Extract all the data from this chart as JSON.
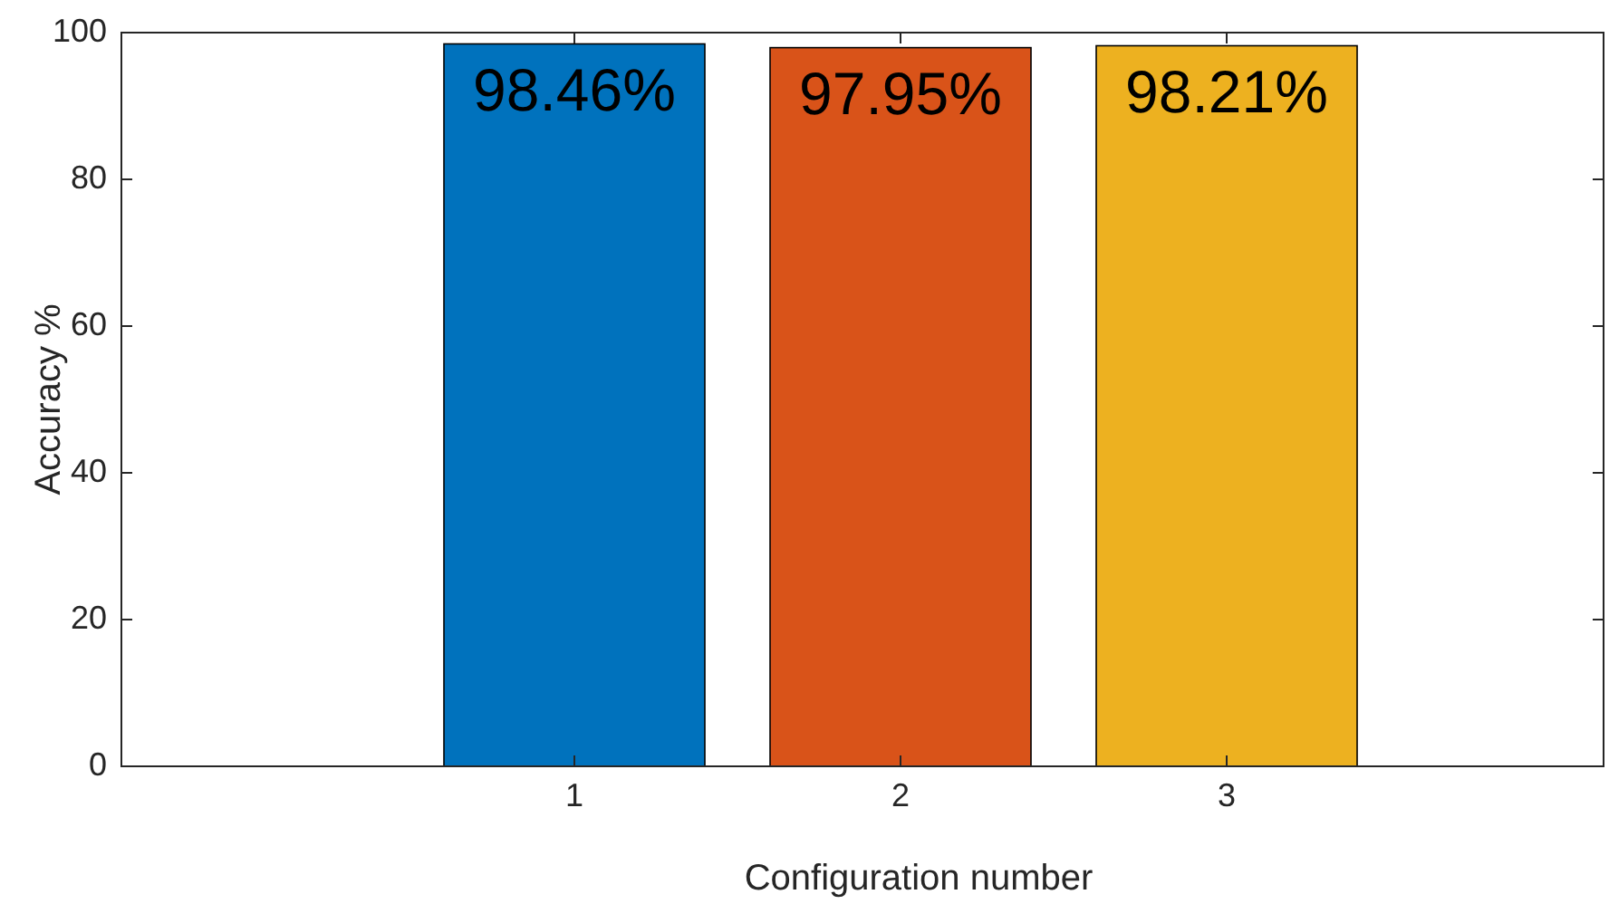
{
  "chart_data": {
    "type": "bar",
    "xlabel": "Configuration number",
    "ylabel": "Accuracy %",
    "categories": [
      "1",
      "2",
      "3"
    ],
    "values": [
      98.46,
      97.95,
      98.21
    ],
    "colors": [
      "#0072bd",
      "#d95319",
      "#edb120"
    ],
    "value_labels": [
      "98.46%",
      "97.95%",
      "98.21%"
    ],
    "ylim": [
      0,
      100
    ],
    "yticks": [
      0,
      20,
      40,
      60,
      80,
      100
    ],
    "grid": false
  }
}
